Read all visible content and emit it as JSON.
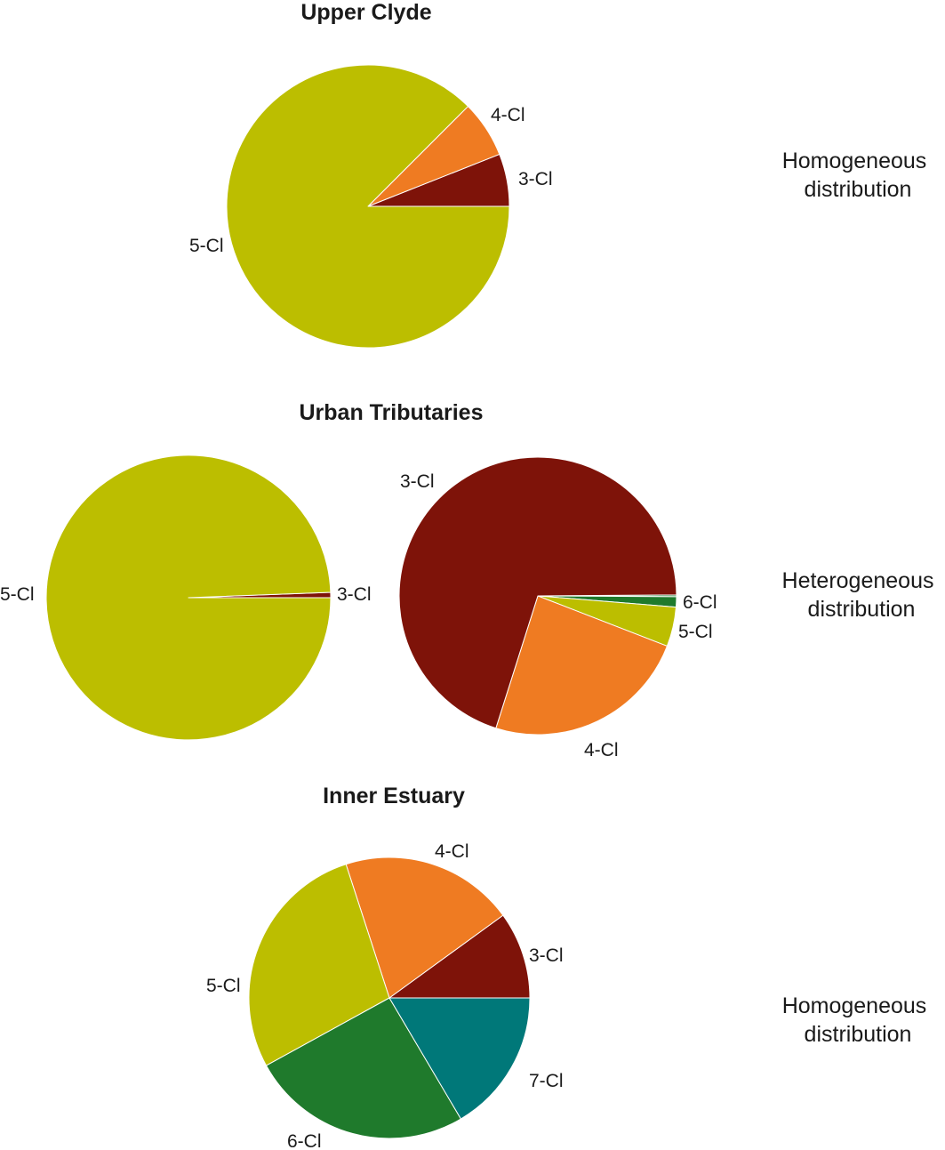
{
  "colors": {
    "3-Cl": "#7e1309",
    "4-Cl": "#ef7b22",
    "5-Cl": "#bcbe00",
    "6-Cl": "#1f7a2c",
    "7-Cl": "#007879"
  },
  "groups": [
    {
      "title": "Upper Clyde",
      "distribution": [
        "Homogeneous",
        "distribution"
      ]
    },
    {
      "title": "Urban Tributaries",
      "distribution": [
        "Heterogeneous",
        "distribution"
      ]
    },
    {
      "title": "Inner Estuary",
      "distribution": [
        "Homogeneous",
        "distribution"
      ]
    }
  ],
  "chart_data": [
    {
      "type": "pie",
      "group": "Upper Clyde",
      "title": "Upper Clyde",
      "slices": [
        {
          "label": "3-Cl",
          "value": 6.0
        },
        {
          "label": "4-Cl",
          "value": 6.5
        },
        {
          "label": "5-Cl",
          "value": 87.5
        }
      ]
    },
    {
      "type": "pie",
      "group": "Urban Tributaries",
      "title": "Urban Tributaries",
      "slices": [
        {
          "label": "3-Cl",
          "value": 0.6
        },
        {
          "label": "5-Cl",
          "value": 99.4
        }
      ]
    },
    {
      "type": "pie",
      "group": "Urban Tributaries",
      "title": "",
      "slices": [
        {
          "label": "6-Cl",
          "value": 0.2
        },
        {
          "label": "6-Cl",
          "value": 1.2
        },
        {
          "label": "5-Cl",
          "value": 4.6
        },
        {
          "label": "4-Cl",
          "value": 24.0
        },
        {
          "label": "3-Cl",
          "value": 70.0
        }
      ]
    },
    {
      "type": "pie",
      "group": "Inner Estuary",
      "title": "Inner Estuary",
      "slices": [
        {
          "label": "3-Cl",
          "value": 10.0
        },
        {
          "label": "4-Cl",
          "value": 20.0
        },
        {
          "label": "5-Cl",
          "value": 28.0
        },
        {
          "label": "6-Cl",
          "value": 25.5
        },
        {
          "label": "7-Cl",
          "value": 16.5
        }
      ]
    }
  ]
}
